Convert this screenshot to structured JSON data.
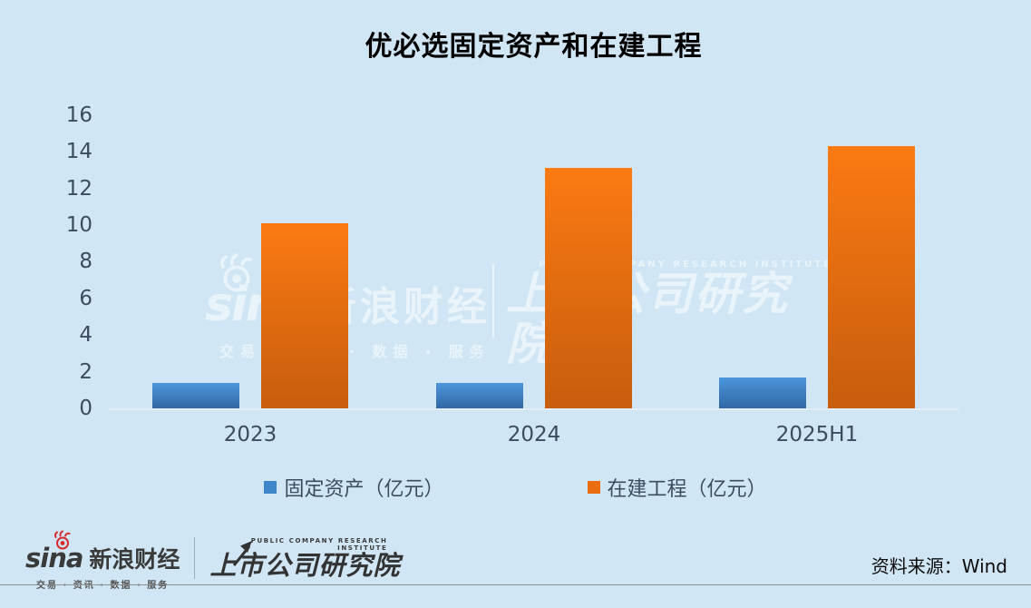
{
  "title": "优必选固定资产和在建工程",
  "chart_data": {
    "type": "bar",
    "title": "优必选固定资产和在建工程",
    "categories": [
      "2023",
      "2024",
      "2025H1"
    ],
    "series": [
      {
        "key": "fixed-assets",
        "name": "固定资产（亿元）",
        "values": [
          1.4,
          1.4,
          1.7
        ],
        "color_top": "#4c96dc",
        "color_bottom": "#3168a4",
        "swatch": "#3e86ca"
      },
      {
        "key": "construction-in-progress",
        "name": "在建工程（亿元）",
        "values": [
          10.1,
          13.1,
          14.3
        ],
        "color_top": "#fb7a12",
        "color_bottom": "#c75d0e",
        "swatch": "#ea6d12"
      }
    ],
    "yticks": [
      0,
      2,
      4,
      6,
      8,
      10,
      12,
      14,
      16
    ],
    "ylim": [
      0,
      16
    ],
    "grid": false,
    "legend_position": "bottom"
  },
  "watermark": {
    "sina_brand": "sina",
    "sina_name": "新浪财经",
    "sina_tagline": "交易 · 资讯 · 数据 · 服务",
    "institute_en": "PUBLIC COMPANY RESEARCH INSTITUTE",
    "institute_name": "上市公司研究院"
  },
  "footer": {
    "sina_brand": "sina",
    "sina_name": "新浪财经",
    "sina_tagline": "交易 · 资讯 · 数据 · 服务",
    "institute_en": "PUBLIC COMPANY RESEARCH INSTITUTE",
    "institute_name": "上市公司研究院",
    "source_label": "资料来源：Wind"
  },
  "colors": {
    "background": "#d0e6f4",
    "axis_text": "#3b4c60",
    "title_text": "#000000",
    "baseline": "#e3edf6",
    "footer_text": "#3a3a3a",
    "footer_rule": "#8f8f8f",
    "sina_red": "#d52b2b",
    "watermark_white": "#ffffff"
  }
}
